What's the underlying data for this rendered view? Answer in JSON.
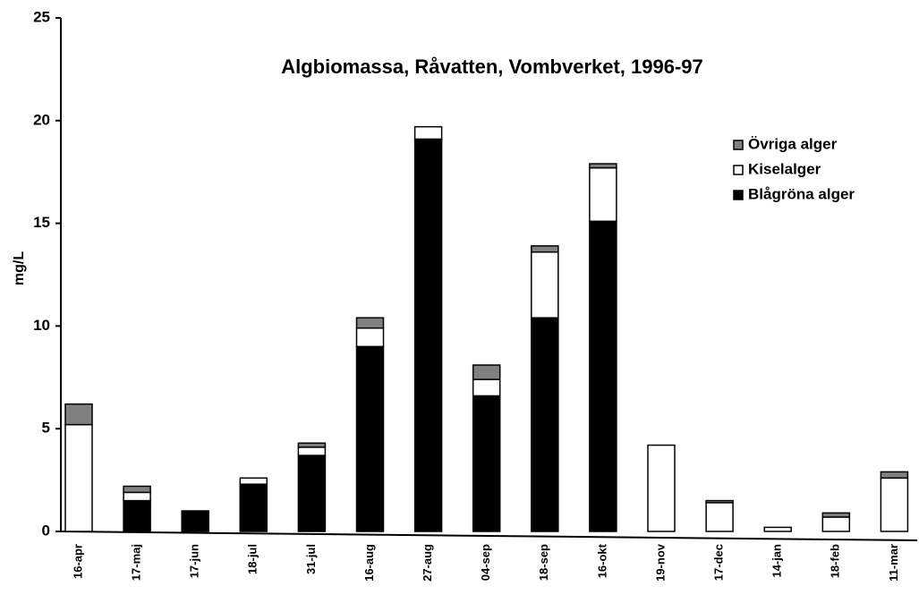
{
  "chart_data": {
    "type": "stacked_bar",
    "title": "Algbiomassa, Råvatten, Vombverket, 1996-97",
    "y_label": "mg/L",
    "categories": [
      "16-apr",
      "17-maj",
      "17-jun",
      "18-jul",
      "31-jul",
      "16-aug",
      "27-aug",
      "04-sep",
      "18-sep",
      "16-okt",
      "19-nov",
      "17-dec",
      "14-jan",
      "18-feb",
      "11-mar"
    ],
    "series": [
      {
        "name": "Övriga alger",
        "color": "#808080",
        "values": [
          1.0,
          0.3,
          0,
          0,
          0.2,
          0.5,
          0,
          0.7,
          0.3,
          0.2,
          0,
          0.1,
          0,
          0.2,
          0.3
        ]
      },
      {
        "name": "Kiselalger",
        "color": "#ffffff",
        "values": [
          5.2,
          0.4,
          0,
          0.3,
          0.4,
          0.9,
          0.6,
          0.8,
          3.2,
          2.6,
          4.2,
          1.4,
          0.2,
          0.7,
          2.6
        ]
      },
      {
        "name": "Blågröna alger",
        "color": "#000000",
        "values": [
          0,
          1.5,
          1.0,
          2.3,
          3.7,
          9.0,
          19.1,
          6.6,
          10.4,
          15.1,
          0,
          0,
          0,
          0,
          0
        ]
      }
    ],
    "ylim": [
      0,
      25
    ],
    "yticks": [
      0,
      5,
      10,
      15,
      20,
      25
    ],
    "legend": "upper right"
  }
}
